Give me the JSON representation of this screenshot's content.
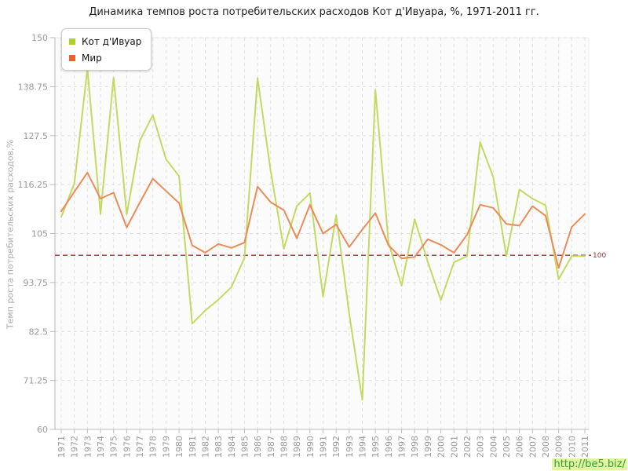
{
  "title": "Динамика темпов роста потребительских расходов Кот д'Ивуара, %, 1971-2011 гг.",
  "y_axis": {
    "label": "Темп роста потребительских расходов,%",
    "ticks": [
      150,
      138.75,
      127.5,
      116.25,
      105,
      93.75,
      82.5,
      71.25,
      60
    ],
    "min": 60,
    "max": 150
  },
  "reference_line": {
    "value": 100,
    "label": "100",
    "color": "#993333"
  },
  "legend": [
    {
      "label": "Кот д'Ивуар",
      "color": "#aed032"
    },
    {
      "label": "Мир",
      "color": "#e0662f"
    }
  ],
  "watermark": {
    "text": "http://be5.biz/",
    "color": "#2ea52e",
    "background": "#e3f2a3"
  },
  "colors": {
    "grid": "#e0e0e0",
    "axis": "#bbbbbb",
    "tick_label": "#999999",
    "plot_background": "#fbfbfb"
  },
  "chart_data": {
    "type": "line",
    "title": "Динамика темпов роста потребительских расходов Кот д'Ивуара, %, 1971-2011 гг.",
    "xlabel": "",
    "ylabel": "Темп роста потребительских расходов,%",
    "ylim": [
      60,
      150
    ],
    "grid": true,
    "legend_position": "top-left",
    "x": [
      1971,
      1972,
      1973,
      1974,
      1975,
      1976,
      1977,
      1978,
      1979,
      1980,
      1981,
      1982,
      1983,
      1984,
      1985,
      1986,
      1987,
      1988,
      1989,
      1990,
      1991,
      1992,
      1993,
      1994,
      1995,
      1996,
      1997,
      1998,
      1999,
      2000,
      2001,
      2002,
      2003,
      2004,
      2005,
      2006,
      2007,
      2008,
      2009,
      2010,
      2011
    ],
    "series": [
      {
        "name": "Кот д'Ивуар",
        "color": "#c3da62",
        "values": [
          108.8,
          116.5,
          142.8,
          109.5,
          140.8,
          109.4,
          126.3,
          132.2,
          122.1,
          118.2,
          84.3,
          87.3,
          89.8,
          92.7,
          99.4,
          140.7,
          119.4,
          101.5,
          111.3,
          114.3,
          90.5,
          109.2,
          86.5,
          66.8,
          138.0,
          102.9,
          93.0,
          108.3,
          98.5,
          89.7,
          98.4,
          99.8,
          126.0,
          118.0,
          99.8,
          115.1,
          113.0,
          111.5,
          94.5,
          99.8,
          99.8
        ]
      },
      {
        "name": "Мир",
        "color": "#ea8c58",
        "values": [
          110.1,
          114.6,
          119.0,
          113.0,
          114.4,
          106.4,
          112.1,
          117.6,
          114.8,
          112.0,
          102.3,
          100.6,
          102.6,
          101.7,
          102.9,
          115.8,
          112.2,
          110.4,
          103.9,
          111.6,
          105.0,
          107.1,
          101.9,
          105.9,
          109.7,
          102.3,
          99.3,
          99.6,
          103.7,
          102.4,
          100.6,
          104.7,
          111.6,
          110.9,
          107.2,
          106.8,
          111.3,
          109.1,
          97.1,
          106.5,
          109.5
        ]
      }
    ]
  }
}
